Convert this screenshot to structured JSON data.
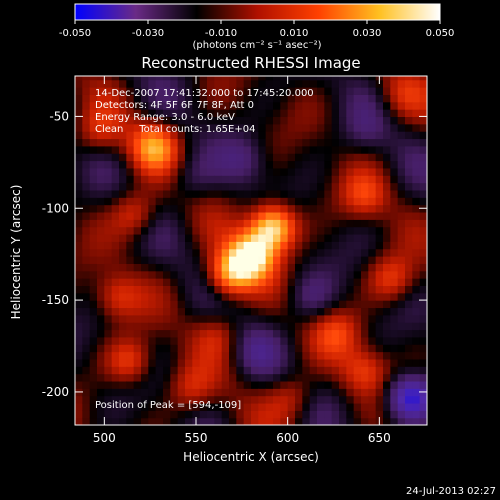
{
  "colorbar": {
    "tick_labels": [
      "-0.050",
      "-0.030",
      "-0.010",
      "0.010",
      "0.030",
      "0.050"
    ],
    "tick_values": [
      -0.05,
      -0.03,
      -0.01,
      0.01,
      0.03,
      0.05
    ],
    "unit_label": "(photons cm⁻² s⁻¹ asec⁻²)",
    "range": [
      -0.05,
      0.05
    ],
    "colors": [
      "#0000ff",
      "#6a2a86",
      "#000000",
      "#b01000",
      "#ff4000",
      "#ffc020",
      "#ffffff"
    ]
  },
  "chart_data": {
    "type": "heatmap",
    "title": "Reconstructed RHESSI Image",
    "xlabel": "Heliocentric X (arcsec)",
    "ylabel": "Heliocentric Y (arcsec)",
    "xlim": [
      484,
      676
    ],
    "ylim": [
      -218,
      -28
    ],
    "x_ticks": [
      500,
      550,
      600,
      650
    ],
    "y_ticks": [
      -50,
      -100,
      -150,
      -200
    ],
    "annotations": [
      "14-Dec-2007 17:41:32.000 to 17:45:20.000",
      "Detectors: 4F 5F 6F 7F 8F, Att 0",
      "Energy Range: 3.0 - 6.0 keV",
      "Clean     Total counts: 1.65E+04"
    ],
    "peak_label": "Position of Peak = [594,-109]",
    "peak": {
      "x": 594,
      "y": -109
    },
    "sources": [
      {
        "x": 590,
        "y": -112,
        "value": 0.05
      },
      {
        "x": 578,
        "y": -128,
        "value": 0.045
      },
      {
        "x": 566,
        "y": -138,
        "value": 0.035
      },
      {
        "x": 525,
        "y": -68,
        "value": 0.03
      },
      {
        "x": 515,
        "y": -105,
        "value": 0.02
      },
      {
        "x": 505,
        "y": -150,
        "value": 0.018
      },
      {
        "x": 512,
        "y": -185,
        "value": 0.022
      },
      {
        "x": 495,
        "y": -60,
        "value": 0.015
      },
      {
        "x": 640,
        "y": -95,
        "value": 0.018
      },
      {
        "x": 655,
        "y": -140,
        "value": 0.02
      },
      {
        "x": 625,
        "y": -170,
        "value": 0.018
      },
      {
        "x": 640,
        "y": -190,
        "value": 0.02
      },
      {
        "x": 600,
        "y": -205,
        "value": 0.015
      },
      {
        "x": 560,
        "y": -170,
        "value": 0.012
      },
      {
        "x": 545,
        "y": -200,
        "value": 0.014
      },
      {
        "x": 660,
        "y": -40,
        "value": 0.012
      },
      {
        "x": 545,
        "y": -85,
        "value": -0.01
      },
      {
        "x": 575,
        "y": -75,
        "value": -0.012
      },
      {
        "x": 610,
        "y": -150,
        "value": -0.012
      },
      {
        "x": 580,
        "y": -180,
        "value": -0.01
      },
      {
        "x": 665,
        "y": -205,
        "value": -0.04
      },
      {
        "x": 640,
        "y": -60,
        "value": -0.008
      }
    ]
  },
  "footer": {
    "date": "24-Jul-2013 02:27"
  }
}
